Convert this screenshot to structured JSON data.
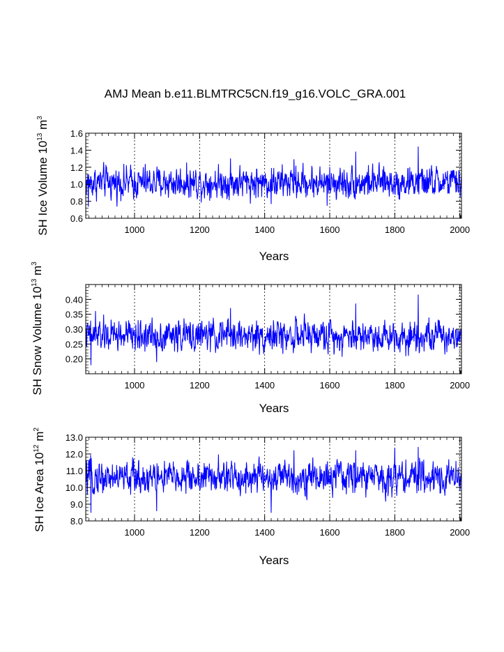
{
  "chart_data": {
    "type": "line",
    "title": "AMJ Mean b.e11.BLMTRC5CN.f19_g16.VOLC_GRA.001",
    "color": "#0000ff",
    "x_range": [
      850,
      2005
    ],
    "panels": [
      {
        "id": "ice-volume",
        "ylabel": {
          "base": "SH Ice Volume 10",
          "exp": "13",
          "unit": " m",
          "unit_exp": "3"
        },
        "xlabel": "Years",
        "xlim": [
          850,
          2005
        ],
        "ylim": [
          0.6,
          1.6
        ],
        "xticks": [
          1000,
          1200,
          1400,
          1600,
          1800,
          2000
        ],
        "xtick_labels": [
          "1000",
          "1200",
          "1400",
          "1600",
          "1800",
          "2000"
        ],
        "yticks": [
          0.6,
          0.8,
          1.0,
          1.2,
          1.4,
          1.6
        ],
        "ytick_labels": [
          "0.6",
          "0.8",
          "1.0",
          "1.2",
          "1.4",
          "1.6"
        ],
        "series": {
          "name": "SH Ice Volume",
          "start_year": 850,
          "end_year": 2005,
          "mean": 1.02,
          "noise": 0.085,
          "min": 0.74,
          "max": 1.44,
          "peaks": [
            [
              1295,
              1.3
            ],
            [
              1490,
              1.29
            ],
            [
              1680,
              1.38
            ],
            [
              1872,
              1.44
            ]
          ],
          "dips": [
            [
              858,
              0.74
            ],
            [
              1420,
              0.77
            ],
            [
              1592,
              0.75
            ]
          ]
        }
      },
      {
        "id": "snow-volume",
        "ylabel": {
          "base": "SH Snow Volume 10",
          "exp": "13",
          "unit": " m",
          "unit_exp": "3"
        },
        "xlabel": "Years",
        "xlim": [
          850,
          2005
        ],
        "ylim": [
          0.15,
          0.45
        ],
        "xticks": [
          1000,
          1200,
          1400,
          1600,
          1800,
          2000
        ],
        "xtick_labels": [
          "1000",
          "1200",
          "1400",
          "1600",
          "1800",
          "2000"
        ],
        "yticks": [
          0.2,
          0.25,
          0.3,
          0.35,
          0.4
        ],
        "ytick_labels": [
          "0.20",
          "0.25",
          "0.30",
          "0.35",
          "0.40"
        ],
        "series": {
          "name": "SH Snow Volume",
          "start_year": 850,
          "end_year": 2005,
          "mean": 0.278,
          "noise": 0.024,
          "min": 0.18,
          "max": 0.415,
          "peaks": [
            [
              880,
              0.36
            ],
            [
              1295,
              0.37
            ],
            [
              1680,
              0.385
            ],
            [
              1872,
              0.415
            ]
          ],
          "dips": [
            [
              866,
              0.18
            ],
            [
              1068,
              0.19
            ]
          ]
        }
      },
      {
        "id": "ice-area",
        "ylabel": {
          "base": "SH Ice Area 10",
          "exp": "12",
          "unit": " m",
          "unit_exp": "2"
        },
        "xlabel": "Years",
        "xlim": [
          850,
          2005
        ],
        "ylim": [
          8.0,
          13.0
        ],
        "xticks": [
          1000,
          1200,
          1400,
          1600,
          1800,
          2000
        ],
        "xtick_labels": [
          "1000",
          "1200",
          "1400",
          "1600",
          "1800",
          "2000"
        ],
        "yticks": [
          8.0,
          9.0,
          10.0,
          11.0,
          12.0,
          13.0
        ],
        "ytick_labels": [
          "8.0",
          "9.0",
          "10.0",
          "11.0",
          "12.0",
          "13.0"
        ],
        "series": {
          "name": "SH Ice Area",
          "start_year": 850,
          "end_year": 2005,
          "mean": 10.6,
          "noise": 0.45,
          "min": 8.5,
          "max": 12.4,
          "peaks": [
            [
              1490,
              12.2
            ],
            [
              1680,
              12.2
            ],
            [
              1800,
              12.35
            ],
            [
              1872,
              12.4
            ]
          ],
          "dips": [
            [
              866,
              8.5
            ],
            [
              1068,
              8.6
            ],
            [
              1420,
              8.5
            ]
          ]
        }
      }
    ]
  }
}
